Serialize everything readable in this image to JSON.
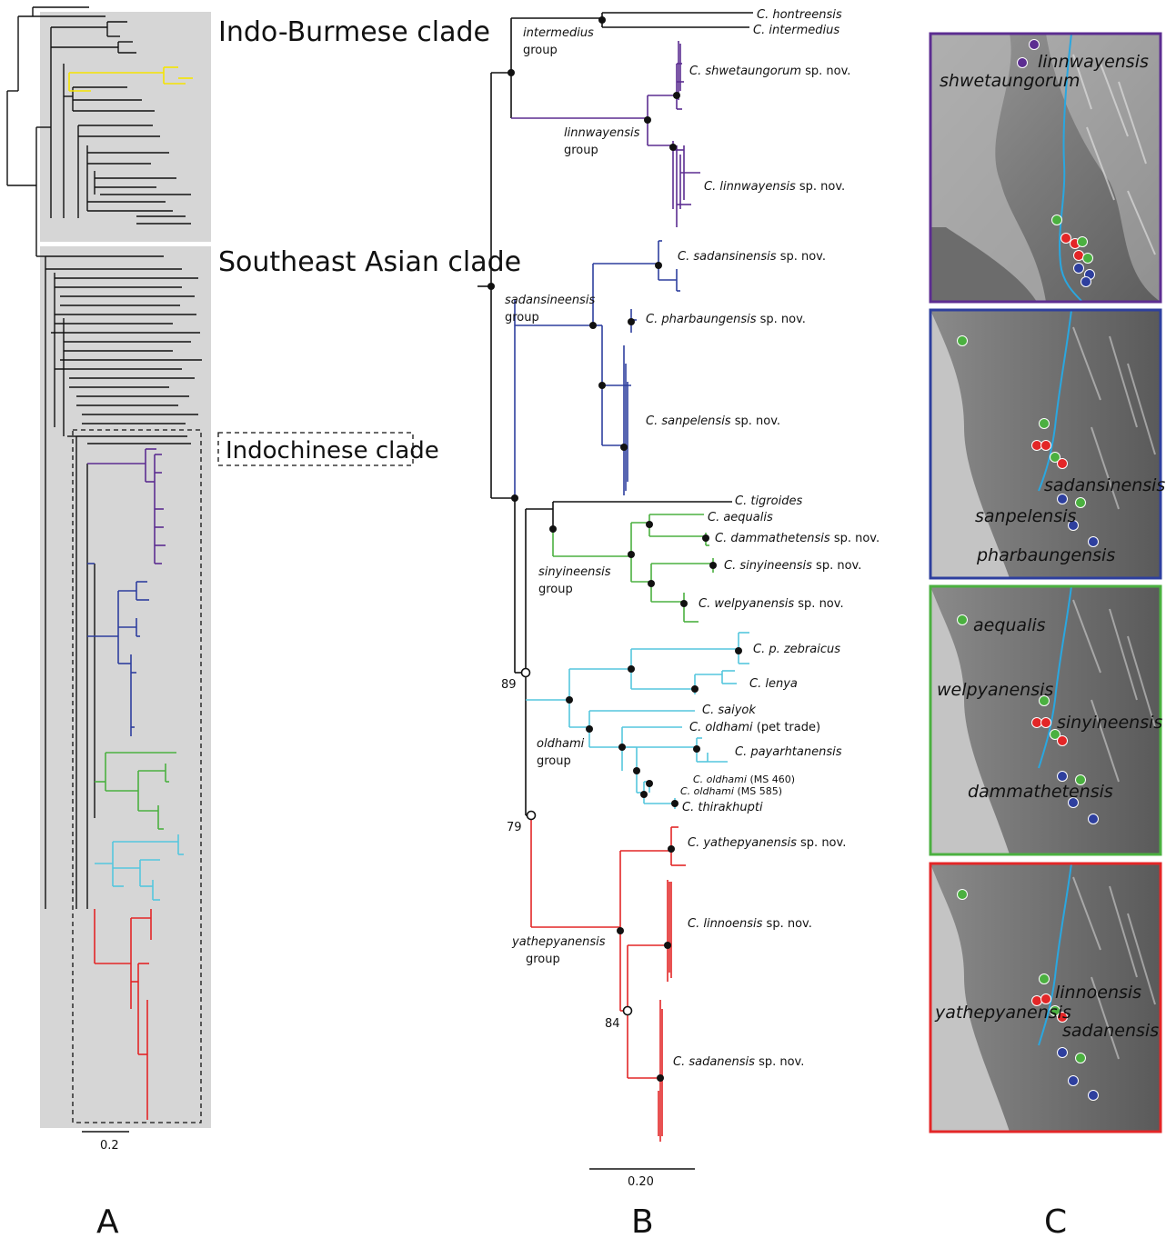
{
  "panels": {
    "a": "A",
    "b": "B",
    "c": "C"
  },
  "panel_a": {
    "clade_indoburmese": "Indo-Burmese clade",
    "clade_southeast": "Southeast Asian clade",
    "clade_indochinese": "Indochinese clade",
    "scale": "0.2"
  },
  "panel_b": {
    "scale": "0.20",
    "groups": {
      "intermedius": [
        "intermedius",
        "group"
      ],
      "linnwayensis": [
        "linnwayensis",
        "group"
      ],
      "sadansineensis": [
        "sadansineensis",
        "group"
      ],
      "sinyineensis": [
        "sinyineensis",
        "group"
      ],
      "oldhami": [
        "oldhami",
        "group"
      ],
      "yathepyanensis": [
        "yathepyanensis",
        "group"
      ]
    },
    "bootstrap": [
      "89",
      "79",
      "84"
    ],
    "tips": {
      "hontreensis": "C. hontreensis",
      "intermedius": "C. intermedius",
      "shwetaungorum": "C. shwetaungorum",
      "linnwayensis": "C. linnwayensis",
      "sadansinensis": "C. sadansinensis",
      "pharbaungensis": "C. pharbaungensis",
      "sanpelensis": "C. sanpelensis",
      "tigroides": "C. tigroides",
      "aequalis": "C. aequalis",
      "dammathetensis": "C. dammathetensis",
      "sinyineensis": "C. sinyineensis",
      "welpyanensis": "C. welpyanensis",
      "zebraicus": "C. p. zebraicus",
      "lenya": "C. lenya",
      "saiyok": "C. saiyok",
      "oldhami_pet": "C. oldhami",
      "oldhami_pet_note": "(pet trade)",
      "payarhtanensis": "C. payarhtanensis",
      "oldhami_460": "C. oldhami",
      "oldhami_460_note": "(MS 460)",
      "oldhami_585": "C. oldhami",
      "oldhami_585_note": "(MS 585)",
      "thirakhupti": "C. thirakhupti",
      "yathepyanensis": "C. yathepyanensis",
      "linnoensis": "C. linnoensis",
      "sadanensis": "C. sadanensis",
      "spnov": "sp. nov."
    }
  },
  "panel_c": {
    "map1": [
      "linnwayensis",
      "shwetaungorum"
    ],
    "map2": [
      "sadansinensis",
      "sanpelensis",
      "pharbaungensis"
    ],
    "map3": [
      "aequalis",
      "welpyanensis",
      "sinyineensis",
      "dammathetensis"
    ],
    "map4": [
      "linnoensis",
      "yathepyanensis",
      "sadanensis"
    ]
  },
  "colors": {
    "purple": "#5c2d91",
    "blue": "#2e3f9e",
    "green": "#4bb040",
    "cyan": "#55c6de",
    "red": "#e32627",
    "yellow": "#f5e400",
    "gray_box": "#d6d6d6",
    "river": "#2aa7e0"
  }
}
